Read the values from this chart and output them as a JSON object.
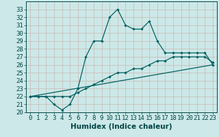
{
  "xlabel": "Humidex (Indice chaleur)",
  "background_color": "#cce8e8",
  "plot_bg_color": "#cce8e8",
  "line_color": "#006060",
  "xlim": [
    -0.5,
    23.5
  ],
  "ylim": [
    20,
    34
  ],
  "yticks": [
    20,
    21,
    22,
    23,
    24,
    25,
    26,
    27,
    28,
    29,
    30,
    31,
    32,
    33
  ],
  "xticks": [
    0,
    1,
    2,
    3,
    4,
    5,
    6,
    7,
    8,
    9,
    10,
    11,
    12,
    13,
    14,
    15,
    16,
    17,
    18,
    19,
    20,
    21,
    22,
    23
  ],
  "series1_x": [
    0,
    1,
    2,
    3,
    4,
    5,
    6,
    7,
    8,
    9,
    10,
    11,
    12,
    13,
    14,
    15,
    16,
    17,
    18,
    19,
    20,
    21,
    22,
    23
  ],
  "series1_y": [
    22,
    22,
    22,
    21,
    20.3,
    21,
    23,
    27,
    29,
    29,
    32,
    33,
    31,
    30.5,
    30.5,
    31.5,
    29,
    27.5,
    27.5,
    27.5,
    27.5,
    27.5,
    27.5,
    26
  ],
  "series2_x": [
    0,
    1,
    2,
    3,
    4,
    5,
    6,
    7,
    8,
    9,
    10,
    11,
    12,
    13,
    14,
    15,
    16,
    17,
    18,
    19,
    20,
    21,
    22,
    23
  ],
  "series2_y": [
    22,
    22,
    22,
    22,
    22,
    22,
    22.5,
    23,
    23.5,
    24,
    24.5,
    25,
    25,
    25.5,
    25.5,
    26,
    26.5,
    26.5,
    27,
    27,
    27,
    27,
    27,
    26.3
  ],
  "series3_x": [
    0,
    23
  ],
  "series3_y": [
    22,
    26
  ],
  "grid_color": "#c8b8b0",
  "grid_major_color": "#c8b8b0",
  "tick_fontsize": 6.5,
  "xlabel_fontsize": 7.5
}
